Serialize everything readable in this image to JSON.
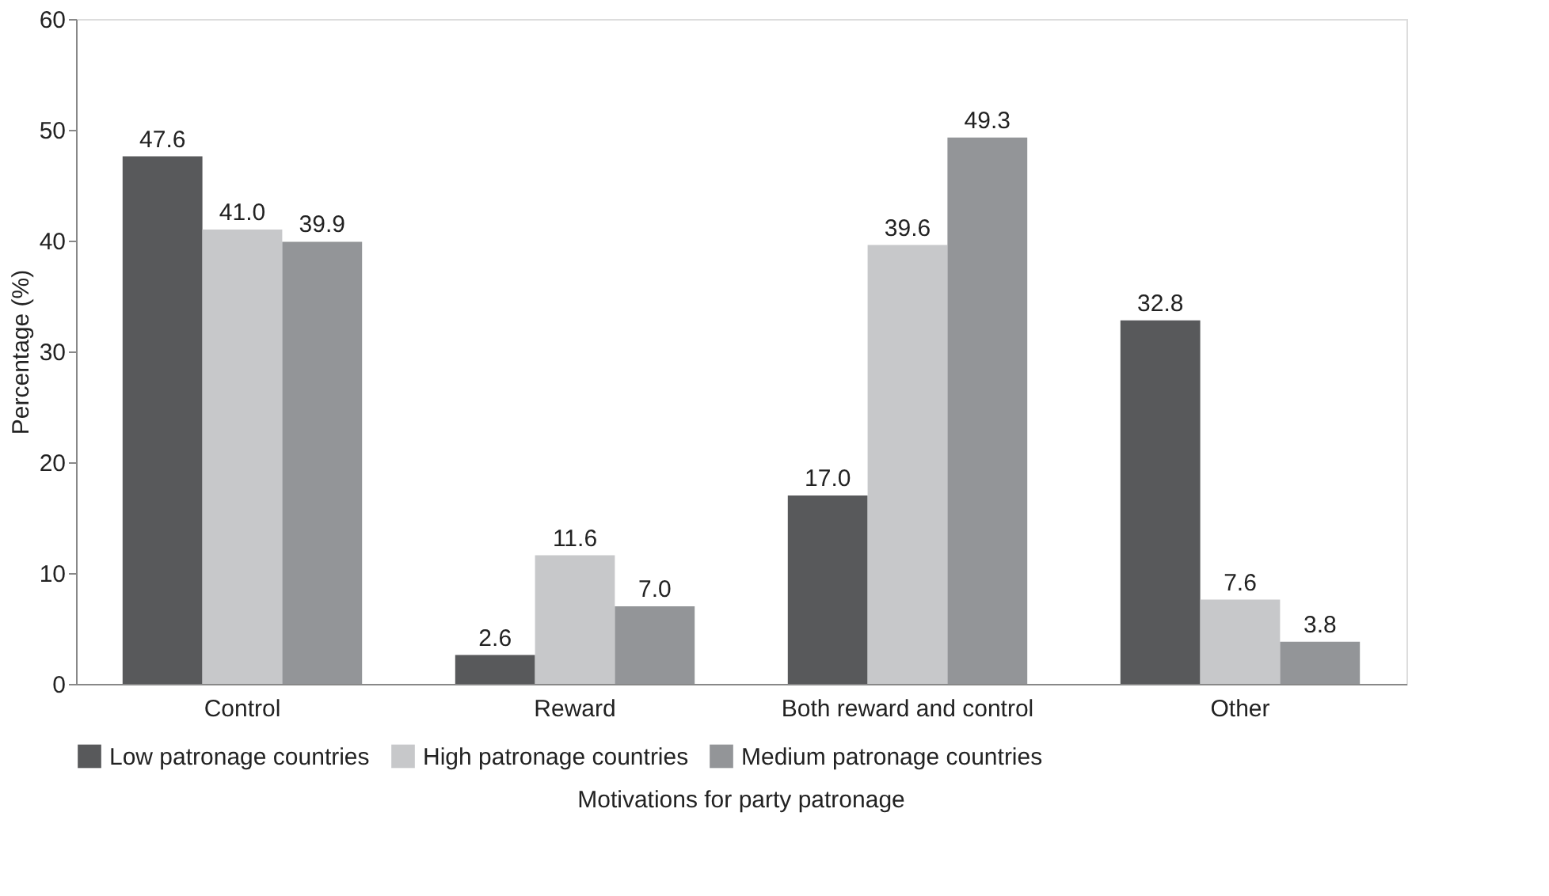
{
  "chart_data": {
    "type": "bar",
    "xlabel": "Motivations for party patronage",
    "ylabel": "Percentage (%)",
    "categories": [
      "Control",
      "Reward",
      "Both reward and control",
      "Other"
    ],
    "series": [
      {
        "name": "Low patronage countries",
        "color": "#58595b",
        "values": [
          47.6,
          2.6,
          17.0,
          32.8
        ],
        "value_labels": [
          "47.6",
          "2.6",
          "17.0",
          "32.8"
        ]
      },
      {
        "name": "High patronage countries",
        "color": "#c7c8ca",
        "values": [
          41.0,
          11.6,
          39.6,
          7.6
        ],
        "value_labels": [
          "41.0",
          "11.6",
          "39.6",
          "7.6"
        ]
      },
      {
        "name": "Medium patronage countries",
        "color": "#939598",
        "values": [
          39.9,
          7.0,
          49.3,
          3.8
        ],
        "value_labels": [
          "39.9",
          "7.0",
          "49.3",
          "3.8"
        ]
      }
    ],
    "ylim": [
      0,
      60
    ],
    "yticks": [
      0,
      10,
      20,
      30,
      40,
      50,
      60
    ],
    "grid": false,
    "legend": "bottom"
  }
}
